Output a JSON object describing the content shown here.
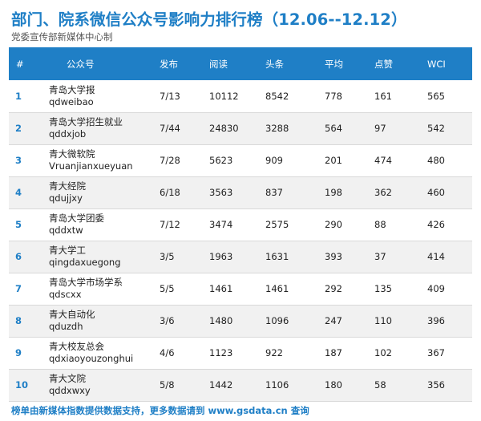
{
  "title": "部门、院系微信公众号影响力排行榜（12.06--12.12）",
  "subtitle": "党委宣传部新媒体中心制",
  "columns": {
    "rank": "#",
    "account": "公众号",
    "posts": "发布",
    "reads": "阅读",
    "headline": "头条",
    "average": "平均",
    "likes": "点赞",
    "wci": "WCI"
  },
  "rows": [
    {
      "rank": "1",
      "name": "青岛大学报",
      "id": "qdweibao",
      "posts": "7/13",
      "reads": "10112",
      "headline": "8542",
      "average": "778",
      "likes": "161",
      "wci": "565"
    },
    {
      "rank": "2",
      "name": "青岛大学招生就业",
      "id": "qddxjob",
      "posts": "7/44",
      "reads": "24830",
      "headline": "3288",
      "average": "564",
      "likes": "97",
      "wci": "542"
    },
    {
      "rank": "3",
      "name": "青大微软院",
      "id": "Vruanjianxueyuan",
      "posts": "7/28",
      "reads": "5623",
      "headline": "909",
      "average": "201",
      "likes": "474",
      "wci": "480"
    },
    {
      "rank": "4",
      "name": "青大经院",
      "id": "qdujjxy",
      "posts": "6/18",
      "reads": "3563",
      "headline": "837",
      "average": "198",
      "likes": "362",
      "wci": "460"
    },
    {
      "rank": "5",
      "name": "青岛大学团委",
      "id": "qddxtw",
      "posts": "7/12",
      "reads": "3474",
      "headline": "2575",
      "average": "290",
      "likes": "88",
      "wci": "426"
    },
    {
      "rank": "6",
      "name": "青大学工",
      "id": "qingdaxuegong",
      "posts": "3/5",
      "reads": "1963",
      "headline": "1631",
      "average": "393",
      "likes": "37",
      "wci": "414"
    },
    {
      "rank": "7",
      "name": "青岛大学市场学系",
      "id": "qdscxx",
      "posts": "5/5",
      "reads": "1461",
      "headline": "1461",
      "average": "292",
      "likes": "135",
      "wci": "409"
    },
    {
      "rank": "8",
      "name": "青大自动化",
      "id": "qduzdh",
      "posts": "3/6",
      "reads": "1480",
      "headline": "1096",
      "average": "247",
      "likes": "110",
      "wci": "396"
    },
    {
      "rank": "9",
      "name": "青大校友总会",
      "id": "qdxiaoyouzonghui",
      "posts": "4/6",
      "reads": "1123",
      "headline": "922",
      "average": "187",
      "likes": "102",
      "wci": "367"
    },
    {
      "rank": "10",
      "name": "青大文院",
      "id": "qddxwxy",
      "posts": "5/8",
      "reads": "1442",
      "headline": "1106",
      "average": "180",
      "likes": "58",
      "wci": "356"
    }
  ],
  "footer": "榜单由新媒体指数提供数据支持，更多数据请到 www.gsdata.cn 查询",
  "colors": {
    "accent": "#1f7fc6",
    "header_bg": "#1f7fc6",
    "alt_row_bg": "#f1f1f1"
  }
}
